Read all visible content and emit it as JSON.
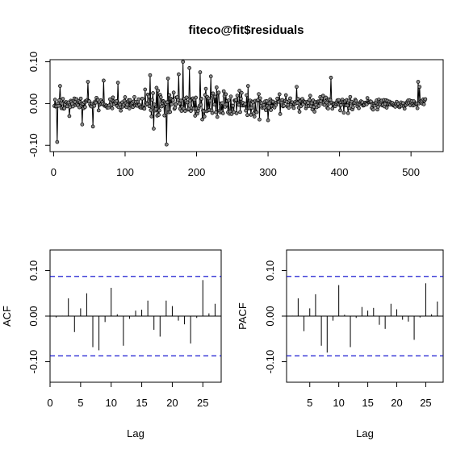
{
  "chart_data": [
    {
      "type": "line",
      "title": "fiteco@fit$residuals",
      "xlabel": "",
      "ylabel": "",
      "xlim": [
        -5,
        545
      ],
      "ylim": [
        -0.115,
        0.105
      ],
      "xticks": [
        0,
        100,
        200,
        300,
        400,
        500
      ],
      "yticks": [
        -0.1,
        0.0,
        0.1
      ],
      "ytick_labels": [
        "-0.10",
        "0.00",
        "0.10"
      ],
      "points": true,
      "n": 520,
      "color": "#000000",
      "x": [],
      "y": []
    },
    {
      "type": "bar",
      "title": "",
      "xlabel": "Lag",
      "ylabel": "ACF",
      "xlim": [
        0,
        28
      ],
      "ylim": [
        -0.145,
        0.145
      ],
      "xticks": [
        0,
        5,
        10,
        15,
        20,
        25
      ],
      "yticks": [
        -0.1,
        0.0,
        0.1
      ],
      "ytick_labels": [
        "-0.10",
        "0.00",
        "0.10"
      ],
      "lags": [
        1,
        2,
        3,
        4,
        5,
        6,
        7,
        8,
        9,
        10,
        11,
        12,
        13,
        14,
        15,
        16,
        17,
        18,
        19,
        20,
        21,
        22,
        23,
        24,
        25,
        26,
        27
      ],
      "values": [
        -0.003,
        0.001,
        0.039,
        -0.035,
        0.017,
        0.05,
        -0.068,
        -0.075,
        -0.013,
        0.062,
        0.004,
        -0.065,
        -0.006,
        0.012,
        0.014,
        0.034,
        -0.03,
        -0.045,
        0.034,
        0.022,
        -0.01,
        -0.018,
        -0.06,
        -0.004,
        0.079,
        0.006,
        0.027
      ],
      "confidence_band": 0.087,
      "band_color": "#0000cc"
    },
    {
      "type": "bar",
      "title": "",
      "xlabel": "Lag",
      "ylabel": "PACF",
      "xlim": [
        1,
        28
      ],
      "ylim": [
        -0.145,
        0.145
      ],
      "xticks": [
        0,
        5,
        10,
        15,
        20,
        25
      ],
      "yticks": [
        -0.1,
        0.0,
        0.1
      ],
      "ytick_labels": [
        "-0.10",
        "0.00",
        "0.10"
      ],
      "lags": [
        1,
        2,
        3,
        4,
        5,
        6,
        7,
        8,
        9,
        10,
        11,
        12,
        13,
        14,
        15,
        16,
        17,
        18,
        19,
        20,
        21,
        22,
        23,
        24,
        25,
        26,
        27
      ],
      "values": [
        -0.003,
        0.001,
        0.039,
        -0.033,
        0.017,
        0.048,
        -0.065,
        -0.08,
        -0.01,
        0.068,
        0.003,
        -0.068,
        -0.004,
        0.02,
        0.012,
        0.018,
        -0.019,
        -0.028,
        0.027,
        0.015,
        -0.008,
        -0.012,
        -0.052,
        -0.003,
        0.072,
        0.004,
        0.032
      ],
      "confidence_band": 0.087,
      "band_color": "#0000cc"
    }
  ]
}
